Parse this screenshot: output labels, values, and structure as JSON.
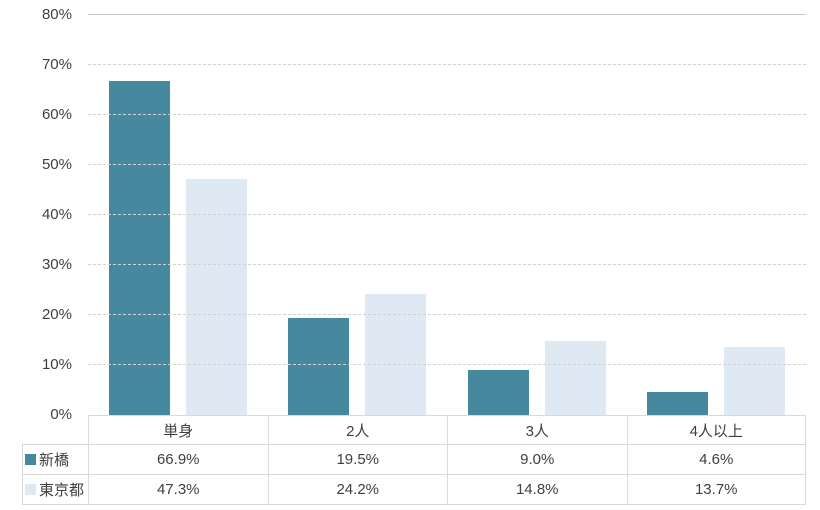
{
  "chart_data": {
    "type": "bar",
    "categories": [
      "単身",
      "2人",
      "3人",
      "4人以上"
    ],
    "series": [
      {
        "name": "新橋",
        "color": "#46899e",
        "values": [
          66.9,
          19.5,
          9.0,
          4.6
        ]
      },
      {
        "name": "東京都",
        "color": "#dfe9f4",
        "values": [
          47.3,
          24.2,
          14.8,
          13.7
        ]
      }
    ],
    "title": "",
    "xlabel": "",
    "ylabel": "",
    "ylim": [
      0,
      80
    ],
    "ytick_step": 10,
    "ytick_labels": [
      "0%",
      "10%",
      "20%",
      "30%",
      "40%",
      "50%",
      "60%",
      "70%",
      "80%"
    ],
    "grid": true,
    "legend_position": "table-left"
  },
  "table": {
    "header": [
      "単身",
      "2人",
      "3人",
      "4人以上"
    ],
    "rows": [
      {
        "label": "新橋",
        "values": [
          "66.9%",
          "19.5%",
          "9.0%",
          "4.6%"
        ]
      },
      {
        "label": "東京都",
        "values": [
          "47.3%",
          "24.2%",
          "14.8%",
          "13.7%"
        ]
      }
    ]
  },
  "colors": {
    "series1": "#46899e",
    "series2": "#dfe9f4",
    "gridline": "#d2d2d2",
    "table_border": "#d9d9d9",
    "text": "#3f3f3f",
    "background": "#ffffff"
  }
}
